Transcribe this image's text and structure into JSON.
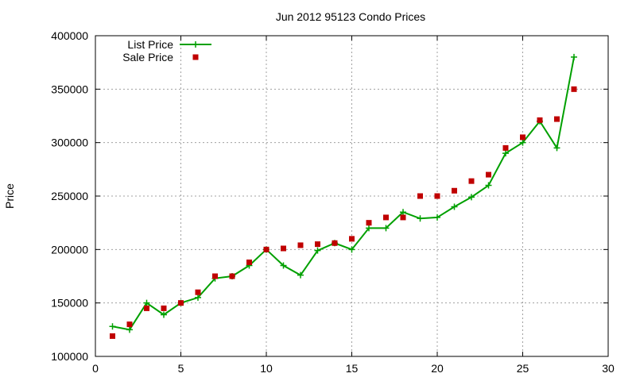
{
  "chart_data": {
    "type": "line",
    "title": "Jun 2012 95123 Condo Prices",
    "xlabel": "",
    "ylabel": "Price",
    "xlim": [
      0,
      30
    ],
    "ylim": [
      100000,
      400000
    ],
    "xticks": [
      0,
      5,
      10,
      15,
      20,
      25,
      30
    ],
    "yticks": [
      100000,
      150000,
      200000,
      250000,
      300000,
      350000,
      400000
    ],
    "grid": true,
    "legend_position": "top-left",
    "series": [
      {
        "name": "List Price",
        "style": "line-plus",
        "color": "#00a000",
        "x": [
          1,
          2,
          3,
          4,
          5,
          6,
          7,
          8,
          9,
          10,
          11,
          12,
          13,
          14,
          15,
          16,
          17,
          18,
          19,
          20,
          21,
          22,
          23,
          24,
          25,
          26,
          27,
          28
        ],
        "y": [
          128000,
          125000,
          150000,
          139000,
          150000,
          155000,
          173000,
          175000,
          185000,
          200000,
          185000,
          176000,
          199000,
          206000,
          200000,
          220000,
          220000,
          235000,
          229000,
          230000,
          240000,
          249000,
          260000,
          290000,
          300000,
          320000,
          295000,
          380000
        ]
      },
      {
        "name": "Sale Price",
        "style": "square-points",
        "color": "#c00000",
        "x": [
          1,
          2,
          3,
          4,
          5,
          6,
          7,
          8,
          9,
          10,
          11,
          12,
          13,
          14,
          15,
          16,
          17,
          18,
          19,
          20,
          21,
          22,
          23,
          24,
          25,
          26,
          27,
          28
        ],
        "y": [
          119000,
          130000,
          145000,
          145000,
          150000,
          160000,
          175000,
          175000,
          188000,
          200000,
          201000,
          204000,
          205000,
          206000,
          210000,
          225000,
          230000,
          230000,
          250000,
          250000,
          255000,
          264000,
          270000,
          295000,
          305000,
          321000,
          322000,
          350000
        ]
      }
    ]
  }
}
